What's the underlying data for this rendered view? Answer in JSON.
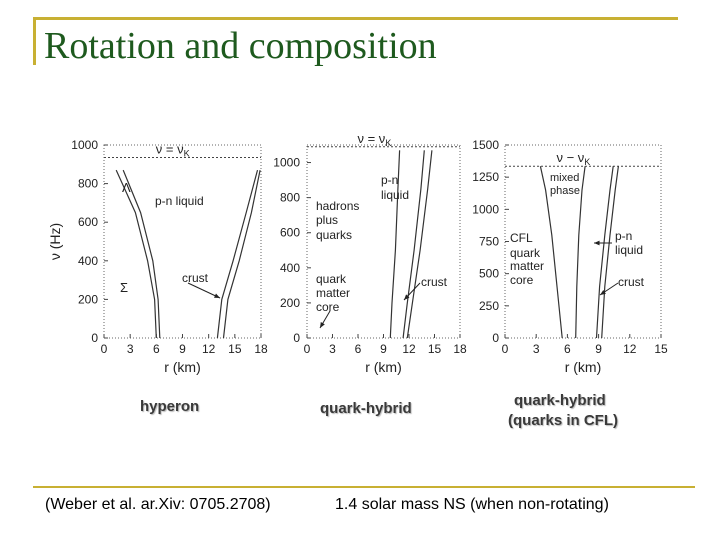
{
  "slide": {
    "title": "Rotation and composition",
    "captions": [
      "hyperon",
      "quark-hybrid",
      "quark-hybrid",
      "(quarks in CFL)"
    ],
    "footnote_left": "(Weber et al. ar.Xiv: 0705.2708)",
    "footnote_right": "1.4 solar mass NS (when non-rotating)",
    "accent_color": "#c8b033",
    "title_color": "#1e5a1e"
  },
  "chart_data": [
    {
      "type": "line",
      "ylabel": "ν (Hz)",
      "xlabel": "r (km)",
      "xlim": [
        0,
        18
      ],
      "ylim": [
        0,
        1000
      ],
      "xticks": [
        0,
        3,
        6,
        9,
        12,
        15,
        18
      ],
      "yticks": [
        0,
        200,
        400,
        600,
        800,
        1000
      ],
      "kepler_label": "ν = ν",
      "kepler_sub": "K",
      "kepler_value": 935,
      "annotations": [
        "Λ",
        "p-n liquid",
        "Σ",
        "crust"
      ],
      "series": [
        {
          "x": [
            6.0,
            5.8,
            5.0,
            3.6,
            1.4
          ],
          "y": [
            0,
            200,
            400,
            650,
            870
          ]
        },
        {
          "x": [
            6.4,
            6.2,
            5.6,
            4.2,
            2.2
          ],
          "y": [
            0,
            200,
            400,
            650,
            870
          ]
        },
        {
          "x": [
            13.0,
            13.5,
            14.8,
            16.3,
            17.6
          ],
          "y": [
            0,
            200,
            400,
            650,
            870
          ]
        },
        {
          "x": [
            13.7,
            14.2,
            15.5,
            16.9,
            17.9
          ],
          "y": [
            0,
            200,
            400,
            650,
            870
          ]
        }
      ]
    },
    {
      "type": "line",
      "xlabel": "r (km)",
      "xlim": [
        0,
        18
      ],
      "ylim": [
        0,
        1100
      ],
      "xticks": [
        0,
        3,
        6,
        9,
        12,
        15,
        18
      ],
      "yticks": [
        0,
        200,
        400,
        600,
        800,
        1000
      ],
      "kepler_label": "ν = ν",
      "kepler_sub": "K",
      "kepler_value": 1090,
      "annotations": [
        "hadrons",
        "plus",
        "quarks",
        "p-n",
        "liquid",
        "quark",
        "matter",
        "core",
        "crust"
      ],
      "series": [
        {
          "x": [
            11.3,
            11.8,
            12.6,
            13.4,
            13.8
          ],
          "y": [
            0,
            200,
            500,
            850,
            1070
          ]
        },
        {
          "x": [
            11.8,
            12.4,
            13.3,
            14.2,
            14.7
          ],
          "y": [
            0,
            200,
            500,
            850,
            1070
          ]
        },
        {
          "x": [
            9.8,
            10.0,
            10.4,
            10.7,
            10.9
          ],
          "y": [
            0,
            200,
            500,
            850,
            1070
          ]
        }
      ]
    },
    {
      "type": "line",
      "xlabel": "r (km)",
      "xlim": [
        0,
        15
      ],
      "ylim": [
        0,
        1500
      ],
      "xticks": [
        0,
        3,
        6,
        9,
        12,
        15
      ],
      "yticks": [
        0,
        250,
        500,
        750,
        1000,
        1250,
        1500
      ],
      "kepler_label": "ν − ν",
      "kepler_sub": "K",
      "kepler_value": 1335,
      "annotations": [
        "mixed",
        "phase",
        "CFL",
        "quark",
        "matter",
        "core",
        "p-n",
        "liquid",
        "crust"
      ],
      "series": [
        {
          "x": [
            5.5,
            5.0,
            4.5,
            3.9,
            3.4
          ],
          "y": [
            0,
            400,
            800,
            1150,
            1335
          ]
        },
        {
          "x": [
            6.8,
            6.9,
            7.1,
            7.4,
            7.7
          ],
          "y": [
            0,
            400,
            800,
            1150,
            1335
          ]
        },
        {
          "x": [
            8.8,
            9.1,
            9.6,
            10.1,
            10.4
          ],
          "y": [
            0,
            400,
            800,
            1150,
            1335
          ]
        },
        {
          "x": [
            9.3,
            9.6,
            10.1,
            10.6,
            10.9
          ],
          "y": [
            0,
            400,
            800,
            1150,
            1335
          ]
        }
      ]
    }
  ]
}
